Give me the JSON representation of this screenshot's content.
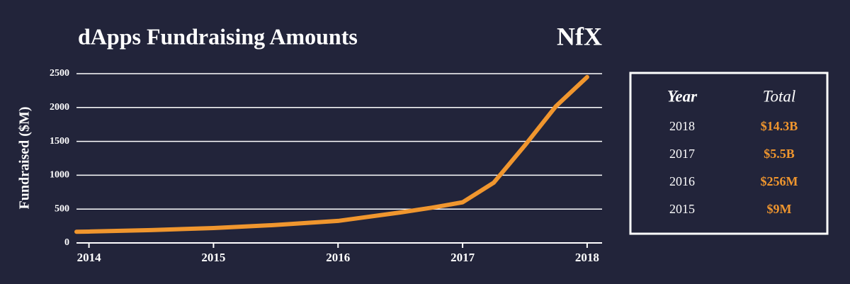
{
  "chart_data": {
    "type": "line",
    "title": "dApps Fundraising Amounts",
    "logo": "NfX",
    "y_label": "Fundraised ($M)",
    "x": [
      2013.9,
      2014,
      2014.5,
      2015,
      2015.5,
      2016,
      2016.5,
      2016.75,
      2017,
      2017.25,
      2017.5,
      2017.75,
      2018
    ],
    "series": [
      {
        "color": "#f0962e",
        "values": [
          165,
          168,
          190,
          220,
          265,
          325,
          450,
          520,
          600,
          890,
          1440,
          2020,
          2450
        ]
      }
    ],
    "xlim": [
      2013.9,
      2018.12
    ],
    "xticks": [
      2014,
      2015,
      2016,
      2017,
      2018
    ],
    "ylim": [
      0,
      2500
    ],
    "yticks": [
      0,
      500,
      1000,
      1500,
      2000,
      2500
    ],
    "grid": true
  },
  "table": {
    "header": [
      "Year",
      "Total"
    ],
    "rows": [
      [
        "2018",
        "$14.3B"
      ],
      [
        "2017",
        "$5.5B"
      ],
      [
        "2016",
        "$256M"
      ],
      [
        "2015",
        "$9M"
      ]
    ]
  }
}
